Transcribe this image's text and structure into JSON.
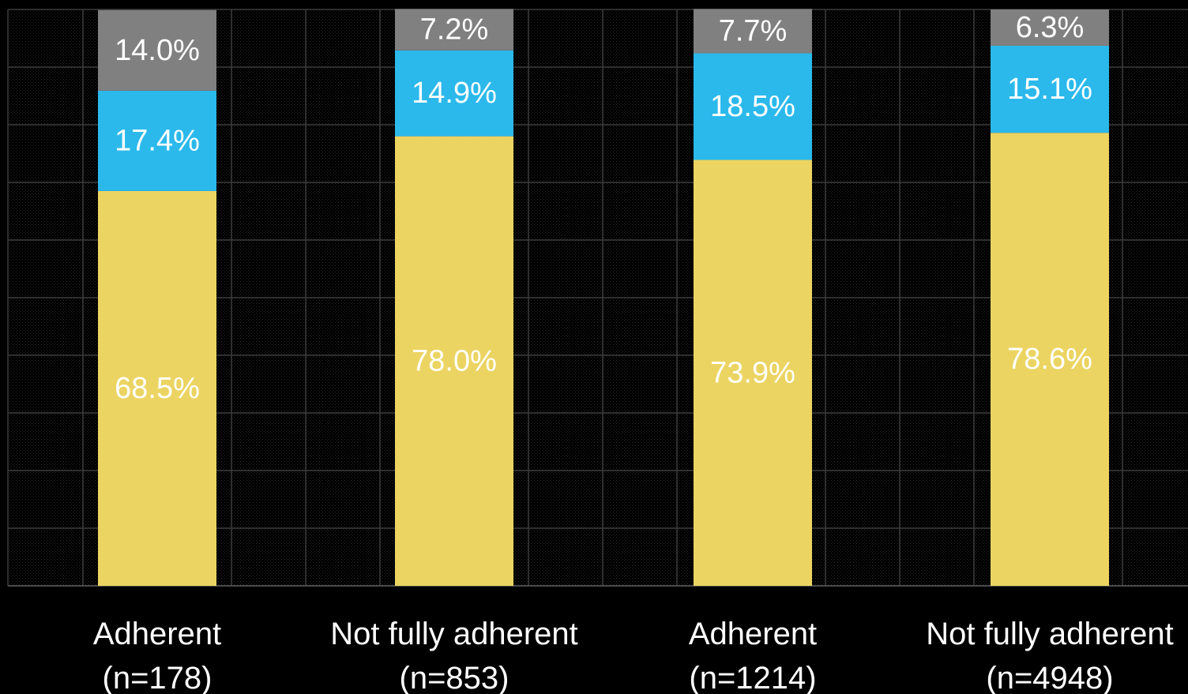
{
  "chart_data": {
    "type": "bar",
    "stacked": true,
    "grid": true,
    "legend": "none",
    "ylim": [
      0,
      100
    ],
    "categories": [
      {
        "label": "Adherent",
        "sublabel": "(n=178)"
      },
      {
        "label": "Not fully adherent",
        "sublabel": "(n=853)"
      },
      {
        "label": "Adherent",
        "sublabel": "(n=1214)"
      },
      {
        "label": "Not fully adherent",
        "sublabel": "(n=4948)"
      }
    ],
    "series": [
      {
        "color": "#ecd462",
        "label_color": "#ffffff",
        "values": [
          68.5,
          78.0,
          73.9,
          78.6
        ],
        "labels": [
          "68.5%",
          "78.0%",
          "73.9%",
          "78.6%"
        ]
      },
      {
        "color": "#2bb9ec",
        "label_color": "#ffffff",
        "values": [
          17.4,
          14.9,
          18.5,
          15.1
        ],
        "labels": [
          "17.4%",
          "14.9%",
          "18.5%",
          "15.1%"
        ]
      },
      {
        "color": "#808080",
        "label_color": "#ffffff",
        "values": [
          14.0,
          7.2,
          7.7,
          6.3
        ],
        "labels": [
          "14.0%",
          "7.2%",
          "7.7%",
          "6.3%"
        ]
      }
    ]
  }
}
